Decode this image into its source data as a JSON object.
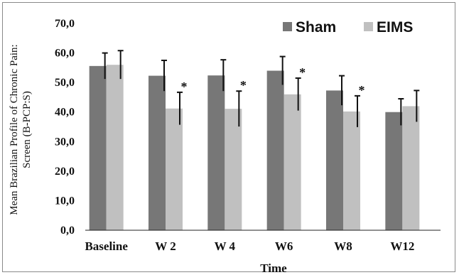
{
  "chart_data": {
    "type": "bar",
    "xlabel": "Time",
    "ylabel_lines": [
      "Mean Brazilian Profile of Chronic Pain:",
      "Screen (B-PCP:S)"
    ],
    "ylim": [
      0,
      70
    ],
    "yticks": [
      "0,0",
      "10,0",
      "20,0",
      "30,0",
      "40,0",
      "50,0",
      "60,0",
      "70,0"
    ],
    "categories": [
      "Baseline",
      "W 2",
      "W 4",
      "W6",
      "W8",
      "W12"
    ],
    "series": [
      {
        "name": "Sham",
        "color": "#777777",
        "values": [
          55.6,
          52.3,
          52.4,
          54.0,
          47.3,
          40.0
        ],
        "errors": [
          4.4,
          5.2,
          5.3,
          4.8,
          5.0,
          4.5
        ]
      },
      {
        "name": "EIMS",
        "color": "#c0c0c0",
        "values": [
          56.0,
          41.2,
          41.1,
          46.0,
          40.2,
          42.0
        ],
        "errors": [
          4.8,
          5.5,
          6.0,
          5.5,
          5.3,
          5.3
        ]
      }
    ],
    "significance_marker": "*",
    "significant_categories": [
      "W 2",
      "W 4",
      "W6",
      "W8"
    ],
    "legend_position": "top-right",
    "grid": false
  }
}
